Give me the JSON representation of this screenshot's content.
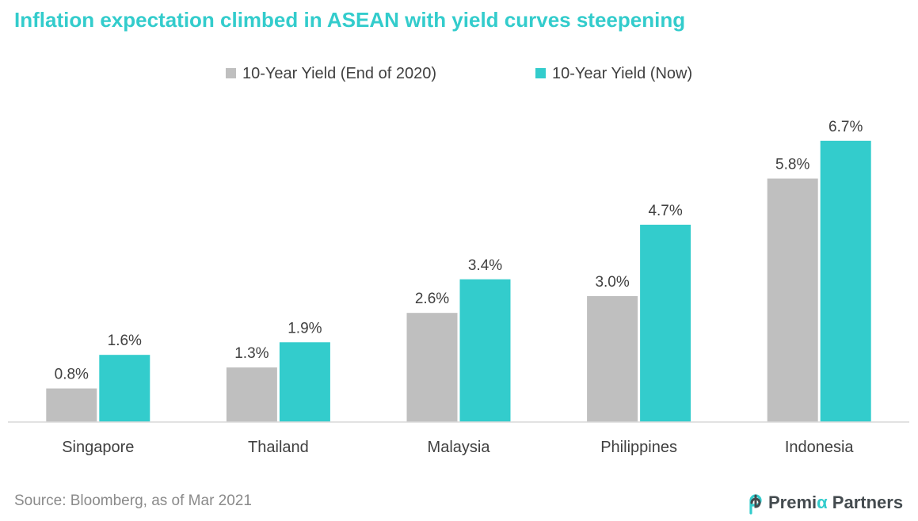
{
  "title": "Inflation expectation climbed in ASEAN  with yield curves steepening",
  "source": "Source: Bloomberg,  as of Mar 2021",
  "logo": {
    "prefix": "Premi",
    "alpha": "α",
    "suffix": " Partners",
    "icon": "premia-logo-icon"
  },
  "colors": {
    "accent": "#33cccc",
    "series_end2020": "#bfbfbf",
    "series_now": "#33cccc",
    "axis": "#d9d9d9",
    "text": "#404040"
  },
  "chart_data": {
    "type": "bar",
    "categories": [
      "Singapore",
      "Thailand",
      "Malaysia",
      "Philippines",
      "Indonesia"
    ],
    "series": [
      {
        "name": "10-Year Yield (End of 2020)",
        "values": [
          0.8,
          1.3,
          2.6,
          3.0,
          5.8
        ],
        "labels": [
          "0.8%",
          "1.3%",
          "2.6%",
          "3.0%",
          "5.8%"
        ],
        "color": "#bfbfbf"
      },
      {
        "name": "10-Year Yield (Now)",
        "values": [
          1.6,
          1.9,
          3.4,
          4.7,
          6.7
        ],
        "labels": [
          "1.6%",
          "1.9%",
          "3.4%",
          "4.7%",
          "6.7%"
        ],
        "color": "#33cccc"
      }
    ],
    "ylim": [
      0,
      7.3
    ],
    "grid": false,
    "legend_position": "top-center"
  }
}
